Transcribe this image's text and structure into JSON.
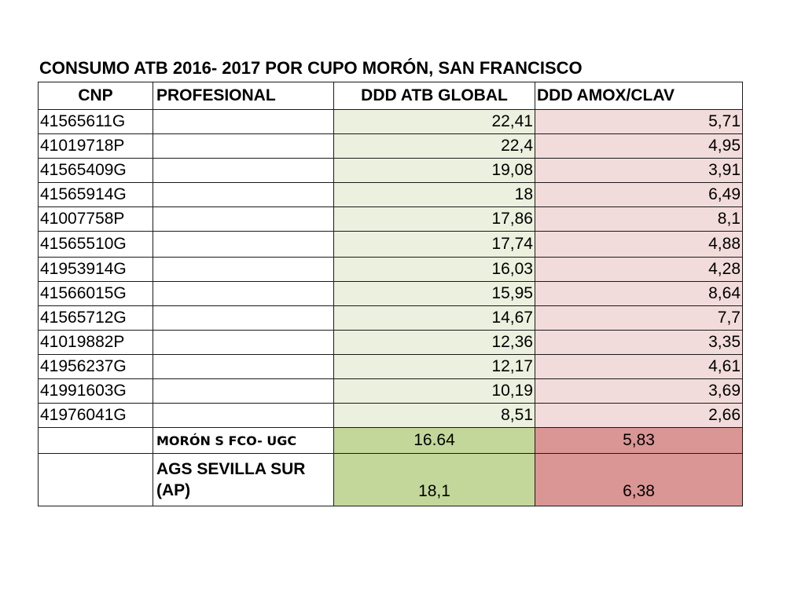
{
  "title": "CONSUMO ATB 2016- 2017 POR CUPO MORÓN, SAN FRANCISCO",
  "headers": {
    "cnp": "CNP",
    "profesional": "PROFESIONAL",
    "ddd_global": "DDD ATB GLOBAL",
    "ddd_amox": "DDD AMOX/CLAV"
  },
  "rows": [
    {
      "cnp": "41565611G",
      "profesional": "",
      "ddd_global": "22,41",
      "ddd_amox": "5,71"
    },
    {
      "cnp": "41019718P",
      "profesional": "",
      "ddd_global": "22,4",
      "ddd_amox": "4,95"
    },
    {
      "cnp": "41565409G",
      "profesional": "",
      "ddd_global": "19,08",
      "ddd_amox": "3,91"
    },
    {
      "cnp": "41565914G",
      "profesional": "",
      "ddd_global": "18",
      "ddd_amox": "6,49"
    },
    {
      "cnp": "41007758P",
      "profesional": "",
      "ddd_global": "17,86",
      "ddd_amox": "8,1"
    },
    {
      "cnp": "41565510G",
      "profesional": "",
      "ddd_global": "17,74",
      "ddd_amox": "4,88"
    },
    {
      "cnp": "41953914G",
      "profesional": "",
      "ddd_global": "16,03",
      "ddd_amox": "4,28"
    },
    {
      "cnp": "41566015G",
      "profesional": "",
      "ddd_global": "15,95",
      "ddd_amox": "8,64"
    },
    {
      "cnp": "41565712G",
      "profesional": "",
      "ddd_global": "14,67",
      "ddd_amox": "7,7"
    },
    {
      "cnp": "41019882P",
      "profesional": "",
      "ddd_global": "12,36",
      "ddd_amox": "3,35"
    },
    {
      "cnp": "41956237G",
      "profesional": "",
      "ddd_global": "12,17",
      "ddd_amox": "4,61"
    },
    {
      "cnp": "41991603G",
      "profesional": "",
      "ddd_global": "10,19",
      "ddd_amox": "3,69"
    },
    {
      "cnp": "41976041G",
      "profesional": "",
      "ddd_global": "8,51",
      "ddd_amox": "2,66"
    }
  ],
  "summary": [
    {
      "cnp": "",
      "label": "MORÓN S FCO- UGC",
      "ddd_global": "16.64",
      "ddd_amox": "5,83"
    },
    {
      "cnp": "",
      "label": "AGS SEVILLA SUR (AP)",
      "ddd_global": "18,1",
      "ddd_amox": "6,38"
    }
  ],
  "colors": {
    "global_light": "#ebf1de",
    "amox_light": "#f2dcdb",
    "global_summary": "#c4d79b",
    "amox_summary": "#da9694"
  }
}
